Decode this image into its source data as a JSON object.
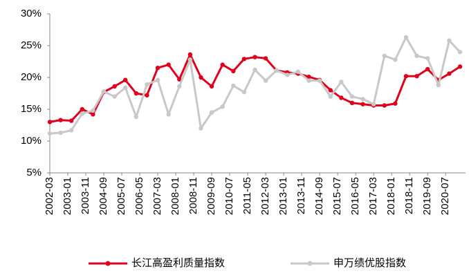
{
  "chart_data": {
    "type": "line",
    "x": [
      "2002-03",
      "2002-09",
      "2003-03",
      "2003-09",
      "2004-03",
      "2004-09",
      "2005-03",
      "2005-09",
      "2006-03",
      "2006-09",
      "2007-03",
      "2007-09",
      "2008-03",
      "2008-09",
      "2009-03",
      "2009-09",
      "2010-03",
      "2010-09",
      "2011-03",
      "2011-09",
      "2012-03",
      "2012-09",
      "2013-03",
      "2013-09",
      "2014-03",
      "2014-09",
      "2015-03",
      "2015-09",
      "2016-03",
      "2016-09",
      "2017-03",
      "2017-09",
      "2018-03",
      "2018-09",
      "2019-03",
      "2019-09",
      "2020-03",
      "2020-09",
      "2021-03"
    ],
    "series": [
      {
        "name": "长江高盈利质量指数",
        "color": "#e0001b",
        "values": [
          13.0,
          13.3,
          13.2,
          15.0,
          14.2,
          17.7,
          18.6,
          19.6,
          17.5,
          17.2,
          21.5,
          22.0,
          19.7,
          23.6,
          20.0,
          18.6,
          22.0,
          21.0,
          22.9,
          23.2,
          23.0,
          21.1,
          20.8,
          20.6,
          20.1,
          19.6,
          18.0,
          16.8,
          16.0,
          15.8,
          15.6,
          15.6,
          15.9,
          20.2,
          20.2,
          21.3,
          19.6,
          20.6,
          21.7
        ]
      },
      {
        "name": "申万绩优股指数",
        "color": "#c8c8c8",
        "values": [
          11.2,
          11.3,
          11.7,
          14.3,
          14.8,
          17.8,
          17.0,
          18.4,
          13.8,
          18.9,
          19.6,
          14.2,
          18.6,
          22.8,
          12.0,
          14.5,
          15.4,
          18.7,
          17.7,
          21.2,
          19.5,
          21.1,
          20.4,
          20.9,
          19.5,
          19.5,
          17.0,
          19.3,
          17.0,
          16.6,
          15.8,
          23.4,
          22.8,
          26.3,
          23.4,
          23.0,
          18.8,
          25.8,
          24.0
        ]
      }
    ],
    "xlim": [
      "2002-03",
      "2021-03"
    ],
    "xticks": [
      "2002-03",
      "2003-01",
      "2003-11",
      "2004-09",
      "2005-07",
      "2006-05",
      "2007-03",
      "2008-01",
      "2008-11",
      "2009-09",
      "2010-07",
      "2011-05",
      "2012-03",
      "2013-01",
      "2013-11",
      "2014-09",
      "2015-07",
      "2016-05",
      "2017-03",
      "2018-01",
      "2018-11",
      "2019-09",
      "2020-07"
    ],
    "ylim": [
      5,
      30
    ],
    "yticks": [
      {
        "value": 5,
        "label": "5%"
      },
      {
        "value": 10,
        "label": "10%"
      },
      {
        "value": 15,
        "label": "15%"
      },
      {
        "value": 20,
        "label": "20%"
      },
      {
        "value": 25,
        "label": "25%"
      },
      {
        "value": 30,
        "label": "30%"
      }
    ],
    "legend": "bottom"
  }
}
